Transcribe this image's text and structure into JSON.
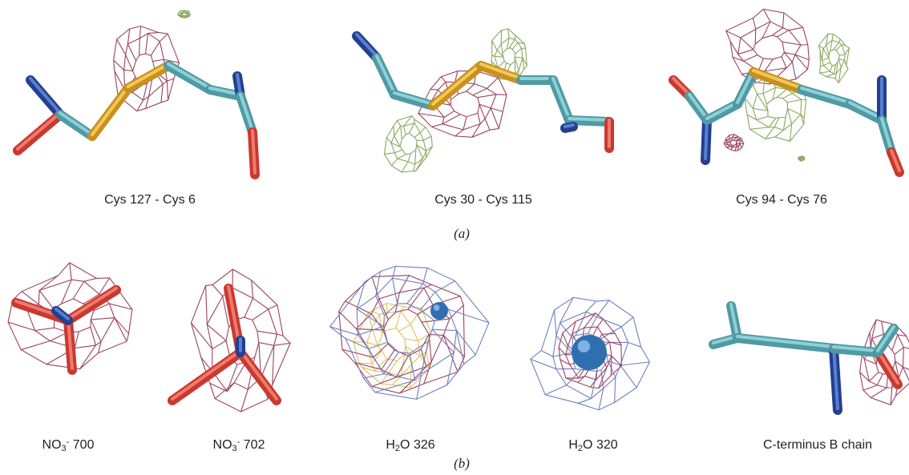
{
  "panel_a": {
    "label": "(a)",
    "captions": [
      [
        {
          "text": "Cys 127 - Cys 6"
        }
      ],
      [
        {
          "text": "Cys 30 - Cys 115"
        }
      ],
      [
        {
          "text": "Cys 94 - Cys 76"
        }
      ]
    ]
  },
  "panel_b": {
    "label": "(b)",
    "captions": [
      [
        {
          "text": "NO"
        },
        {
          "text": "3",
          "style": "sub"
        },
        {
          "text": "-",
          "style": "sup"
        },
        {
          "text": " 700"
        }
      ],
      [
        {
          "text": "NO"
        },
        {
          "text": "3",
          "style": "sub"
        },
        {
          "text": "-",
          "style": "sup"
        },
        {
          "text": " 702"
        }
      ],
      [
        {
          "text": "H"
        },
        {
          "text": "2",
          "style": "sub"
        },
        {
          "text": "O 326"
        }
      ],
      [
        {
          "text": "H"
        },
        {
          "text": "2",
          "style": "sub"
        },
        {
          "text": "O 320"
        }
      ],
      [
        {
          "text": "C-terminus B chain"
        }
      ]
    ]
  }
}
